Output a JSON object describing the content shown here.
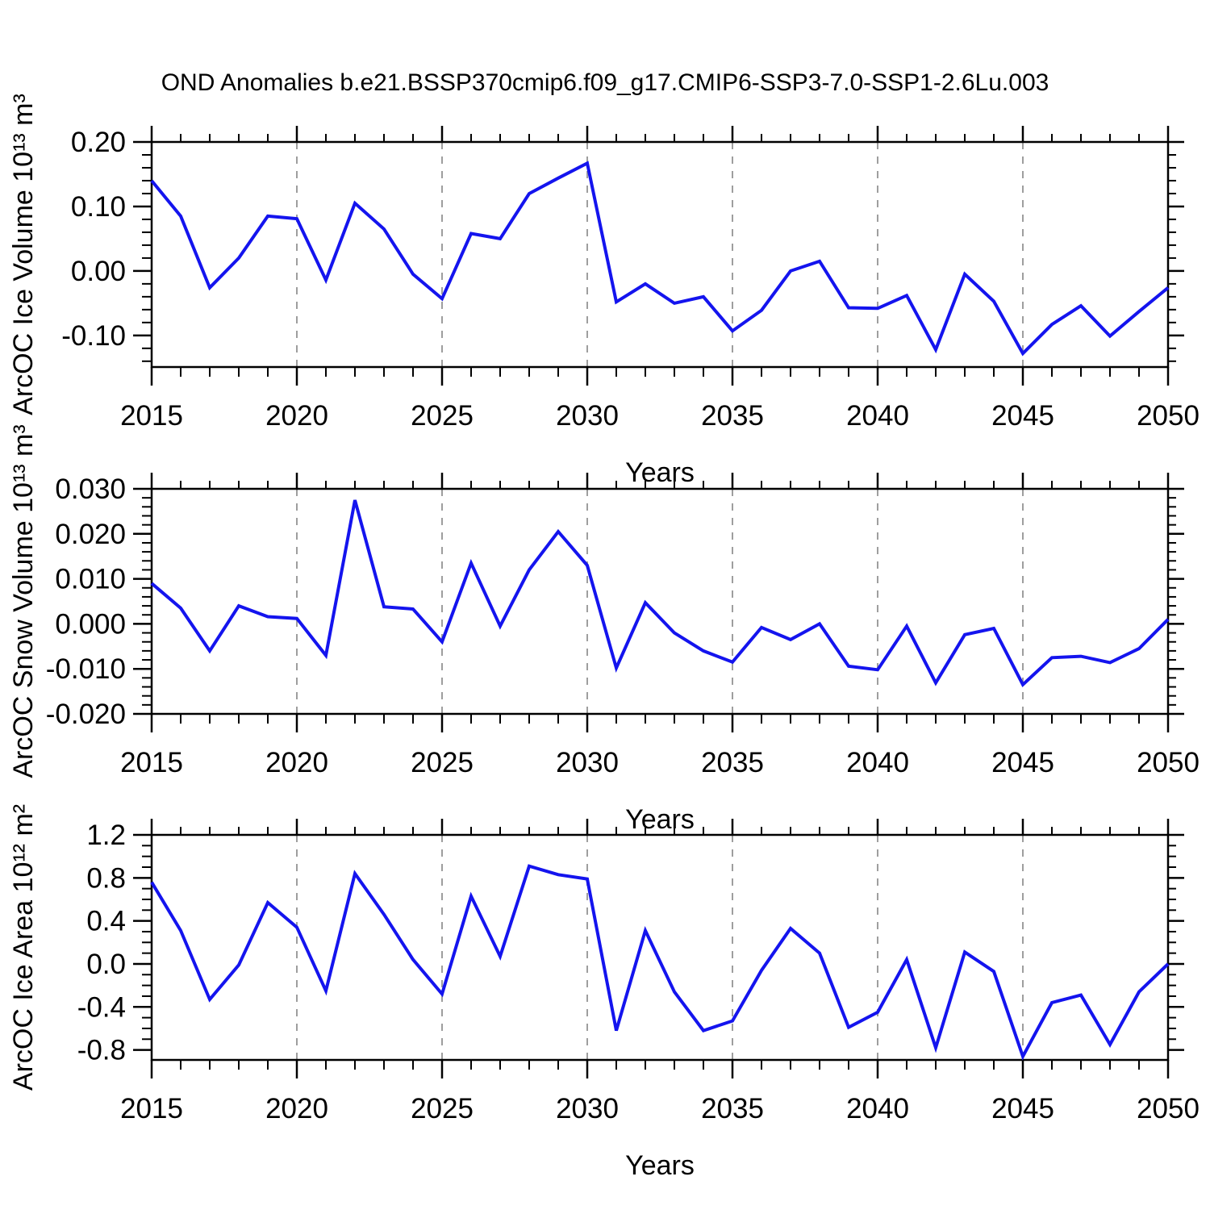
{
  "title": "OND Anomalies b.e21.BSSP370cmip6.f09_g17.CMIP6-SSP3-7.0-SSP1-2.6Lu.003",
  "colors": {
    "line": "#1414ee",
    "frame": "#000000",
    "gridline": "#9e9e9e",
    "background": "#ffffff"
  },
  "chart_data": [
    {
      "type": "line",
      "ylabel": "ArcOC Ice Volume 10¹³ m³",
      "xlabel": "Years",
      "xlim": [
        2015,
        2050
      ],
      "ylim": [
        -0.149,
        0.2
      ],
      "grid": "vertical-dashed",
      "legend": "none",
      "gridlines_x": [
        2020,
        2025,
        2030,
        2035,
        2040,
        2045
      ],
      "xticks": {
        "values": [
          2015,
          2020,
          2025,
          2030,
          2035,
          2040,
          2045,
          2050
        ],
        "labels": [
          "2015",
          "2020",
          "2025",
          "2030",
          "2035",
          "2040",
          "2045",
          "2050"
        ],
        "minor_step": 1
      },
      "yticks": {
        "values": [
          0.2,
          0.1,
          0.0,
          -0.1
        ],
        "labels": [
          "0.20",
          "0.10",
          "0.00",
          "-0.10"
        ],
        "minor_step": 0.02
      },
      "x": [
        2015,
        2016,
        2017,
        2018,
        2019,
        2020,
        2021,
        2022,
        2023,
        2024,
        2025,
        2026,
        2027,
        2028,
        2029,
        2030,
        2031,
        2032,
        2033,
        2034,
        2035,
        2036,
        2037,
        2038,
        2039,
        2040,
        2041,
        2042,
        2043,
        2044,
        2045,
        2046,
        2047,
        2048,
        2049,
        2050
      ],
      "values": [
        0.14,
        0.085,
        -0.026,
        0.02,
        0.085,
        0.081,
        -0.014,
        0.105,
        0.065,
        -0.005,
        -0.043,
        0.058,
        0.05,
        0.12,
        0.144,
        0.167,
        -0.048,
        -0.02,
        -0.05,
        -0.04,
        -0.093,
        -0.061,
        0.0,
        0.015,
        -0.057,
        -0.058,
        -0.038,
        -0.122,
        -0.005,
        -0.047,
        -0.128,
        -0.083,
        -0.054,
        -0.101,
        -0.063,
        -0.026
      ]
    },
    {
      "type": "line",
      "ylabel": "ArcOC Snow Volume 10¹³ m³",
      "xlabel": "Years",
      "xlim": [
        2015,
        2050
      ],
      "ylim": [
        -0.02,
        0.03
      ],
      "grid": "vertical-dashed",
      "legend": "none",
      "gridlines_x": [
        2020,
        2025,
        2030,
        2035,
        2040,
        2045
      ],
      "xticks": {
        "values": [
          2015,
          2020,
          2025,
          2030,
          2035,
          2040,
          2045,
          2050
        ],
        "labels": [
          "2015",
          "2020",
          "2025",
          "2030",
          "2035",
          "2040",
          "2045",
          "2050"
        ],
        "minor_step": 1
      },
      "yticks": {
        "values": [
          0.03,
          0.02,
          0.01,
          0.0,
          -0.01,
          -0.02
        ],
        "labels": [
          "0.030",
          "0.020",
          "0.010",
          "0.000",
          "-0.010",
          "-0.020"
        ],
        "minor_step": 0.002
      },
      "x": [
        2015,
        2016,
        2017,
        2018,
        2019,
        2020,
        2021,
        2022,
        2023,
        2024,
        2025,
        2026,
        2027,
        2028,
        2029,
        2030,
        2031,
        2032,
        2033,
        2034,
        2035,
        2036,
        2037,
        2038,
        2039,
        2040,
        2041,
        2042,
        2043,
        2044,
        2045,
        2046,
        2047,
        2048,
        2049,
        2050
      ],
      "values": [
        0.009,
        0.0035,
        -0.006,
        0.004,
        0.0016,
        0.0012,
        -0.007,
        0.0275,
        0.0038,
        0.0033,
        -0.004,
        0.0135,
        -0.0005,
        0.012,
        0.0205,
        0.013,
        -0.0098,
        0.0047,
        -0.002,
        -0.006,
        -0.0085,
        -0.0008,
        -0.0035,
        0.0,
        -0.0094,
        -0.0102,
        -0.0005,
        -0.0131,
        -0.0024,
        -0.001,
        -0.0135,
        -0.0075,
        -0.0072,
        -0.0086,
        -0.0055,
        0.001
      ]
    },
    {
      "type": "line",
      "ylabel": "ArcOC Ice Area 10¹² m²",
      "xlabel": "Years",
      "xlim": [
        2015,
        2050
      ],
      "ylim": [
        -0.893,
        1.2
      ],
      "grid": "vertical-dashed",
      "legend": "none",
      "gridlines_x": [
        2020,
        2025,
        2030,
        2035,
        2040,
        2045
      ],
      "xticks": {
        "values": [
          2015,
          2020,
          2025,
          2030,
          2035,
          2040,
          2045,
          2050
        ],
        "labels": [
          "2015",
          "2020",
          "2025",
          "2030",
          "2035",
          "2040",
          "2045",
          "2050"
        ],
        "minor_step": 1
      },
      "yticks": {
        "values": [
          1.2,
          0.8,
          0.4,
          0.0,
          -0.4,
          -0.8
        ],
        "labels": [
          "1.2",
          "0.8",
          "0.4",
          "0.0",
          "-0.4",
          "-0.8"
        ],
        "minor_step": 0.1
      },
      "x": [
        2015,
        2016,
        2017,
        2018,
        2019,
        2020,
        2021,
        2022,
        2023,
        2024,
        2025,
        2026,
        2027,
        2028,
        2029,
        2030,
        2031,
        2032,
        2033,
        2034,
        2035,
        2036,
        2037,
        2038,
        2039,
        2040,
        2041,
        2042,
        2043,
        2044,
        2045,
        2046,
        2047,
        2048,
        2049,
        2050
      ],
      "values": [
        0.76,
        0.31,
        -0.33,
        -0.01,
        0.57,
        0.34,
        -0.25,
        0.84,
        0.46,
        0.04,
        -0.28,
        0.63,
        0.07,
        0.91,
        0.83,
        0.79,
        -0.62,
        0.31,
        -0.26,
        -0.62,
        -0.53,
        -0.06,
        0.33,
        0.1,
        -0.59,
        -0.45,
        0.04,
        -0.78,
        0.11,
        -0.07,
        -0.86,
        -0.36,
        -0.29,
        -0.75,
        -0.26,
        0.0
      ]
    }
  ]
}
